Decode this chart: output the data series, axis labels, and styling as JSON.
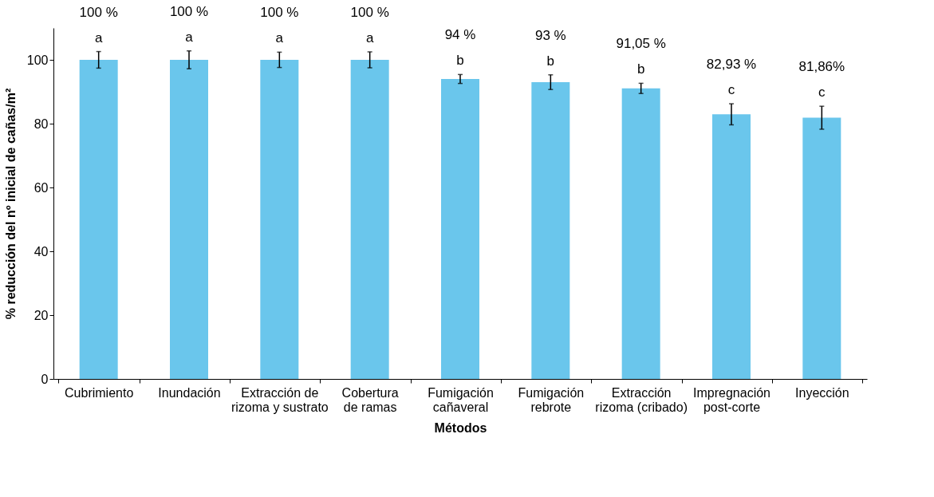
{
  "chart_data": {
    "type": "bar",
    "xlabel": "Métodos",
    "ylabel": "% reducción del nº inicial de cañas/m²",
    "categories": [
      "Cubrimiento",
      "Inundación",
      "Extracción de\nrizoma y sustrato",
      "Cobertura\nde ramas",
      "Fumigación\ncañaveral",
      "Fumigación\nrebrote",
      "Extracción\nrizoma (cribado)",
      "Impregnación\npost-corte",
      "Inyección"
    ],
    "values": [
      100,
      100,
      100,
      100,
      94,
      93,
      91.05,
      82.93,
      81.86
    ],
    "value_labels": [
      "100 %",
      "100 %",
      "100 %",
      "100 %",
      "94 %",
      "93 %",
      "91,05 %",
      "82,93 %",
      "81,86%"
    ],
    "errors": [
      2.6,
      2.8,
      2.4,
      2.5,
      1.4,
      2.3,
      1.6,
      3.3,
      3.6
    ],
    "color": "#6ac6ec",
    "ylim": [
      0,
      110
    ],
    "yticks": [
      0,
      20,
      40,
      60,
      80,
      100
    ],
    "grid": false,
    "annotations": [
      "a",
      "a",
      "a",
      "a",
      "b",
      "b",
      "b",
      "c",
      "c"
    ]
  }
}
